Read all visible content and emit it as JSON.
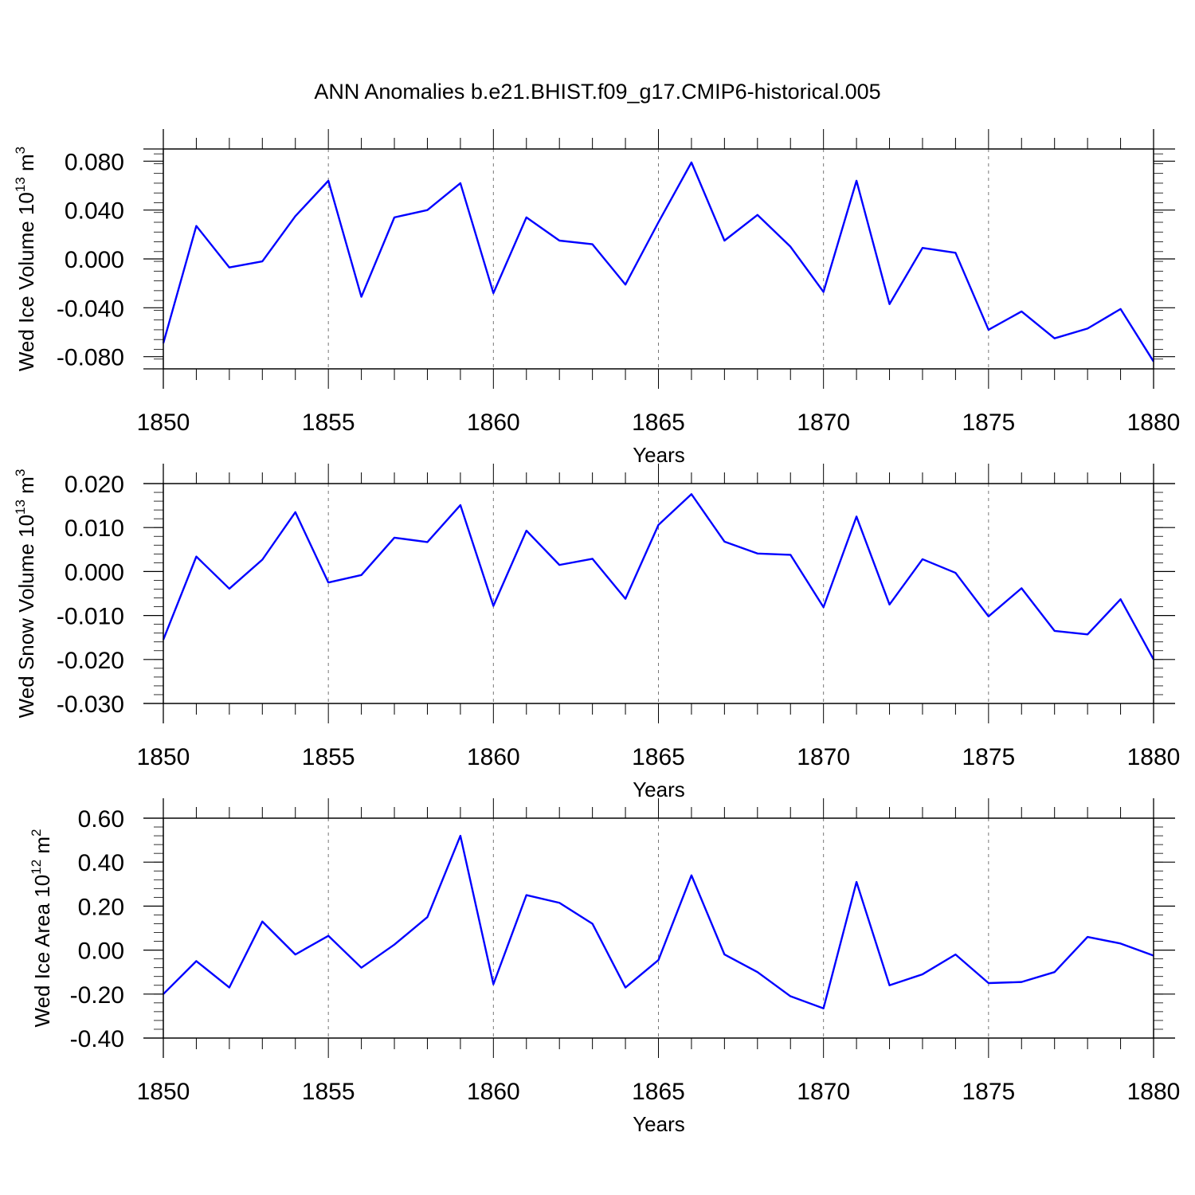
{
  "title": "ANN Anomalies b.e21.BHIST.f09_g17.CMIP6-historical.005",
  "line_color": "#0000ff",
  "chart_data": [
    {
      "type": "line",
      "ylabel_main": "Wed Ice Volume 10",
      "ylabel_exp": "13",
      "ylabel_unit": " m",
      "ylabel_unit_exp": "3",
      "xlabel": "Years",
      "xlim": [
        1850,
        1880
      ],
      "ylim": [
        -0.09,
        0.09
      ],
      "yticks": [
        -0.08,
        -0.04,
        0.0,
        0.04,
        0.08
      ],
      "ytick_labels": [
        "-0.080",
        "-0.040",
        "0.000",
        "0.040",
        "0.080"
      ],
      "y_minor_step": 0.008,
      "xticks": [
        1850,
        1855,
        1860,
        1865,
        1870,
        1875,
        1880
      ],
      "xtick_labels": [
        "1850",
        "1855",
        "1860",
        "1865",
        "1870",
        "1875",
        "1880"
      ],
      "x": [
        1850,
        1851,
        1852,
        1853,
        1854,
        1855,
        1856,
        1857,
        1858,
        1859,
        1860,
        1861,
        1862,
        1863,
        1864,
        1865,
        1866,
        1867,
        1868,
        1869,
        1870,
        1871,
        1872,
        1873,
        1874,
        1875,
        1876,
        1877,
        1878,
        1879,
        1880
      ],
      "values": [
        -0.069,
        0.027,
        -0.007,
        -0.002,
        0.035,
        0.064,
        -0.031,
        0.034,
        0.04,
        0.062,
        -0.028,
        0.034,
        0.015,
        0.012,
        -0.021,
        0.03,
        0.079,
        0.015,
        0.036,
        0.01,
        -0.027,
        0.064,
        -0.037,
        0.009,
        0.005,
        -0.058,
        -0.043,
        -0.065,
        -0.057,
        -0.041,
        -0.084
      ]
    },
    {
      "type": "line",
      "ylabel_main": "Wed Snow Volume 10",
      "ylabel_exp": "13",
      "ylabel_unit": " m",
      "ylabel_unit_exp": "3",
      "xlabel": "Years",
      "xlim": [
        1850,
        1880
      ],
      "ylim": [
        -0.03,
        0.02
      ],
      "yticks": [
        -0.03,
        -0.02,
        -0.01,
        0.0,
        0.01,
        0.02
      ],
      "ytick_labels": [
        "-0.030",
        "-0.020",
        "-0.010",
        "0.000",
        "0.010",
        "0.020"
      ],
      "y_minor_step": 0.002,
      "xticks": [
        1850,
        1855,
        1860,
        1865,
        1870,
        1875,
        1880
      ],
      "xtick_labels": [
        "1850",
        "1855",
        "1860",
        "1865",
        "1870",
        "1875",
        "1880"
      ],
      "x": [
        1850,
        1851,
        1852,
        1853,
        1854,
        1855,
        1856,
        1857,
        1858,
        1859,
        1860,
        1861,
        1862,
        1863,
        1864,
        1865,
        1866,
        1867,
        1868,
        1869,
        1870,
        1871,
        1872,
        1873,
        1874,
        1875,
        1876,
        1877,
        1878,
        1879,
        1880
      ],
      "values": [
        -0.0155,
        0.0034,
        -0.0039,
        0.0027,
        0.0135,
        -0.0025,
        -0.0008,
        0.0077,
        0.0067,
        0.0151,
        -0.0078,
        0.0093,
        0.0015,
        0.0029,
        -0.0062,
        0.0106,
        0.0176,
        0.0068,
        0.0041,
        0.0038,
        -0.0081,
        0.0125,
        -0.0075,
        0.0028,
        -0.0003,
        -0.0102,
        -0.0038,
        -0.0135,
        -0.0143,
        -0.0063,
        -0.02
      ]
    },
    {
      "type": "line",
      "ylabel_main": "Wed Ice Area 10",
      "ylabel_exp": "12",
      "ylabel_unit": " m",
      "ylabel_unit_exp": "2",
      "xlabel": "Years",
      "xlim": [
        1850,
        1880
      ],
      "ylim": [
        -0.4,
        0.6
      ],
      "yticks": [
        -0.4,
        -0.2,
        0.0,
        0.2,
        0.4,
        0.6
      ],
      "ytick_labels": [
        "-0.40",
        "-0.20",
        "0.00",
        "0.20",
        "0.40",
        "0.60"
      ],
      "y_minor_step": 0.04,
      "xticks": [
        1850,
        1855,
        1860,
        1865,
        1870,
        1875,
        1880
      ],
      "xtick_labels": [
        "1850",
        "1855",
        "1860",
        "1865",
        "1870",
        "1875",
        "1880"
      ],
      "x": [
        1850,
        1851,
        1852,
        1853,
        1854,
        1855,
        1856,
        1857,
        1858,
        1859,
        1860,
        1861,
        1862,
        1863,
        1864,
        1865,
        1866,
        1867,
        1868,
        1869,
        1870,
        1871,
        1872,
        1873,
        1874,
        1875,
        1876,
        1877,
        1878,
        1879,
        1880
      ],
      "values": [
        -0.2,
        -0.05,
        -0.17,
        0.13,
        -0.02,
        0.065,
        -0.08,
        0.025,
        0.15,
        0.52,
        -0.155,
        0.25,
        0.215,
        0.12,
        -0.17,
        -0.045,
        0.34,
        -0.02,
        -0.1,
        -0.21,
        -0.265,
        0.31,
        -0.16,
        -0.11,
        -0.02,
        -0.15,
        -0.145,
        -0.1,
        0.06,
        0.03,
        -0.025
      ]
    }
  ]
}
